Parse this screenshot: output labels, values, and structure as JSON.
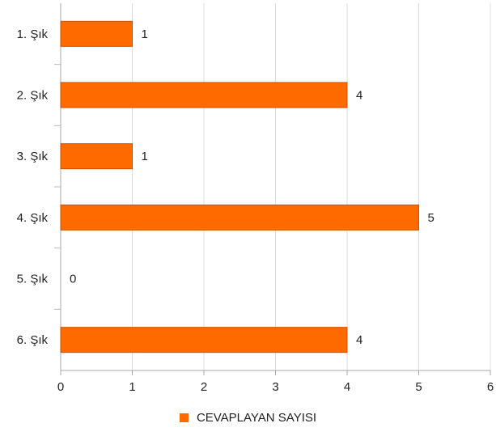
{
  "chart_data": {
    "type": "bar",
    "orientation": "horizontal",
    "categories": [
      "1. Şık",
      "2. Şık",
      "3. Şık",
      "4. Şık",
      "5. Şık",
      "6. Şık"
    ],
    "series": [
      {
        "name": "CEVAPLAYAN SAYISI",
        "values": [
          1,
          4,
          1,
          5,
          0,
          4
        ],
        "color": "#FF6A00"
      }
    ],
    "xlim": [
      0,
      6
    ],
    "xticks": [
      "0",
      "1",
      "2",
      "3",
      "4",
      "5",
      "6"
    ],
    "grid": true,
    "data_labels": true,
    "legend_position": "bottom"
  }
}
